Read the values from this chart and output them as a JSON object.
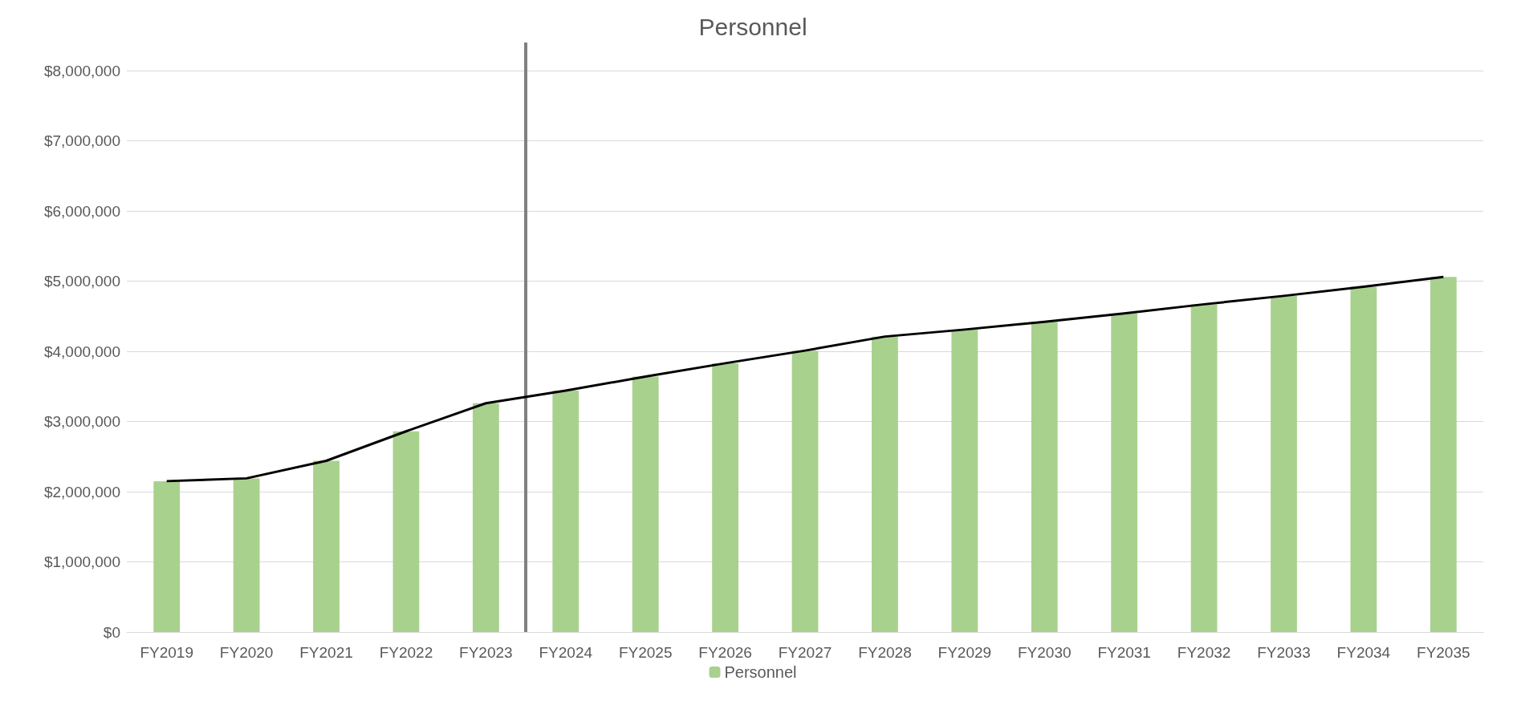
{
  "chart_data": {
    "type": "bar",
    "title": "Personnel",
    "categories": [
      "FY2019",
      "FY2020",
      "FY2021",
      "FY2022",
      "FY2023",
      "FY2024",
      "FY2025",
      "FY2026",
      "FY2027",
      "FY2028",
      "FY2029",
      "FY2030",
      "FY2031",
      "FY2032",
      "FY2033",
      "FY2034",
      "FY2035"
    ],
    "series": [
      {
        "name": "Personnel",
        "color": "#a9d18e",
        "values": [
          2150000,
          2190000,
          2440000,
          2860000,
          3260000,
          3440000,
          3640000,
          3830000,
          4010000,
          4210000,
          4310000,
          4420000,
          4540000,
          4670000,
          4790000,
          4920000,
          5060000
        ]
      },
      {
        "type": "line",
        "color": "#000000",
        "values": [
          2150000,
          2190000,
          2440000,
          2860000,
          3260000,
          3440000,
          3640000,
          3830000,
          4010000,
          4210000,
          4310000,
          4420000,
          4540000,
          4670000,
          4790000,
          4920000,
          5060000
        ]
      }
    ],
    "ylim": [
      0,
      8400000
    ],
    "yticks": [
      {
        "value": 0,
        "label": "$0"
      },
      {
        "value": 1000000,
        "label": "$1,000,000"
      },
      {
        "value": 2000000,
        "label": "$2,000,000"
      },
      {
        "value": 3000000,
        "label": "$3,000,000"
      },
      {
        "value": 4000000,
        "label": "$4,000,000"
      },
      {
        "value": 5000000,
        "label": "$5,000,000"
      },
      {
        "value": 6000000,
        "label": "$6,000,000"
      },
      {
        "value": 7000000,
        "label": "$7,000,000"
      },
      {
        "value": 8000000,
        "label": "$8,000,000"
      }
    ],
    "ref_lines": [
      {
        "axis": "x",
        "value": "FY2024",
        "color": "#808080"
      }
    ],
    "grid": "y",
    "legend": "bottom",
    "marker": "none"
  }
}
